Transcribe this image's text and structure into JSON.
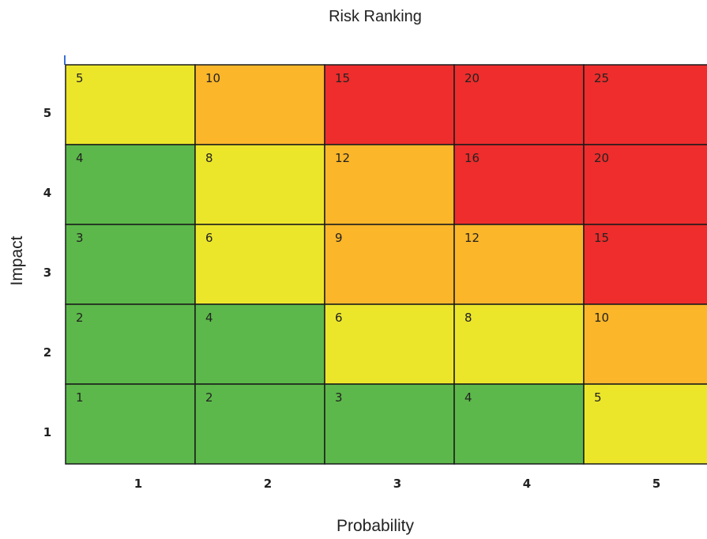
{
  "chart_data": {
    "type": "heatmap",
    "title": "Risk Ranking",
    "xlabel": "Probability",
    "ylabel": "Impact",
    "x_ticks": [
      "1",
      "2",
      "3",
      "4",
      "5"
    ],
    "y_ticks": [
      "1",
      "2",
      "3",
      "4",
      "5"
    ],
    "rows_top_to_bottom": [
      {
        "impact": 5,
        "values": [
          5,
          10,
          15,
          20,
          25
        ],
        "colors": [
          "#ece62b",
          "#fbb62a",
          "#ee2d2c",
          "#ee2d2c",
          "#ee2d2c"
        ]
      },
      {
        "impact": 4,
        "values": [
          4,
          8,
          12,
          16,
          20
        ],
        "colors": [
          "#5cb84a",
          "#ece62b",
          "#fbb62a",
          "#ee2d2c",
          "#ee2d2c"
        ]
      },
      {
        "impact": 3,
        "values": [
          3,
          6,
          9,
          12,
          15
        ],
        "colors": [
          "#5cb84a",
          "#ece62b",
          "#fbb62a",
          "#fbb62a",
          "#ee2d2c"
        ]
      },
      {
        "impact": 2,
        "values": [
          2,
          4,
          6,
          8,
          10
        ],
        "colors": [
          "#5cb84a",
          "#5cb84a",
          "#ece62b",
          "#ece62b",
          "#fbb62a"
        ]
      },
      {
        "impact": 1,
        "values": [
          1,
          2,
          3,
          4,
          5
        ],
        "colors": [
          "#5cb84a",
          "#5cb84a",
          "#5cb84a",
          "#5cb84a",
          "#ece62b"
        ]
      }
    ],
    "grid": true
  }
}
